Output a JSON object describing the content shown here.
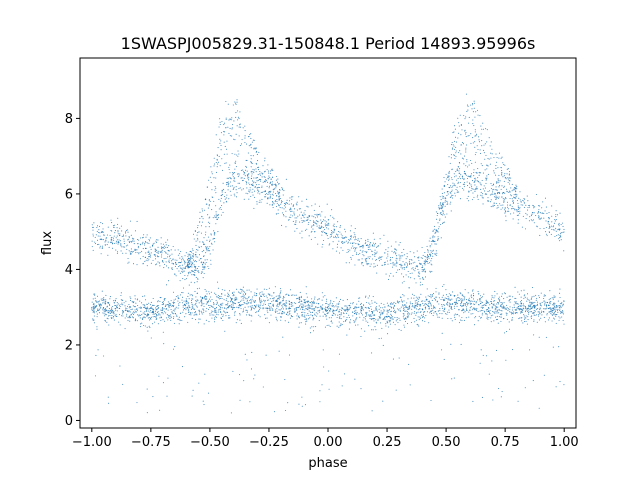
{
  "chart_data": {
    "type": "scatter",
    "title": "1SWASPJ005829.31-150848.1 Period 14893.95996s",
    "xlabel": "phase",
    "ylabel": "flux",
    "xlim": [
      -1.05,
      1.05
    ],
    "ylim": [
      -0.2,
      9.6
    ],
    "xticks": [
      -1.0,
      -0.75,
      -0.5,
      -0.25,
      0.0,
      0.25,
      0.5,
      0.75,
      1.0
    ],
    "xtick_labels": [
      "−1.00",
      "−0.75",
      "−0.50",
      "−0.25",
      "0.00",
      "0.25",
      "0.50",
      "0.75",
      "1.00"
    ],
    "yticks": [
      0,
      2,
      4,
      6,
      8
    ],
    "ytick_labels": [
      "0",
      "2",
      "4",
      "6",
      "8"
    ],
    "grid": false,
    "point_color": "#1f77b4",
    "series": [
      {
        "component": "baseline",
        "x": [
          -1.0,
          -0.75,
          -0.5,
          -0.25,
          0.0,
          0.25,
          0.5,
          0.75,
          1.0
        ],
        "y": [
          3.0,
          2.9,
          3.1,
          3.1,
          2.9,
          2.8,
          3.1,
          3.0,
          3.0
        ]
      },
      {
        "component": "upper branch",
        "x": [
          -1.0,
          -0.8,
          -0.6,
          -0.55,
          -0.5,
          -0.45,
          -0.4,
          -0.3,
          -0.2,
          -0.1,
          0.0,
          0.1,
          0.2,
          0.3,
          0.4,
          0.45,
          0.5,
          0.55,
          0.6,
          0.7,
          0.8,
          0.9,
          1.0
        ],
        "y": [
          5.0,
          4.6,
          4.1,
          4.0,
          4.5,
          5.8,
          6.4,
          6.2,
          5.8,
          5.4,
          5.0,
          4.7,
          4.4,
          4.2,
          4.0,
          4.6,
          5.8,
          6.4,
          6.3,
          6.0,
          5.7,
          5.4,
          5.0
        ]
      },
      {
        "component": "peak envelope",
        "x": [
          -0.6,
          -0.5,
          -0.45,
          -0.4,
          -0.35,
          -0.3,
          -0.2,
          0.4,
          0.5,
          0.55,
          0.6,
          0.65,
          0.7,
          0.8
        ],
        "y": [
          4.0,
          6.5,
          8.3,
          8.6,
          8.0,
          7.3,
          6.2,
          4.0,
          6.5,
          8.3,
          8.6,
          8.0,
          7.3,
          6.2
        ]
      }
    ]
  }
}
